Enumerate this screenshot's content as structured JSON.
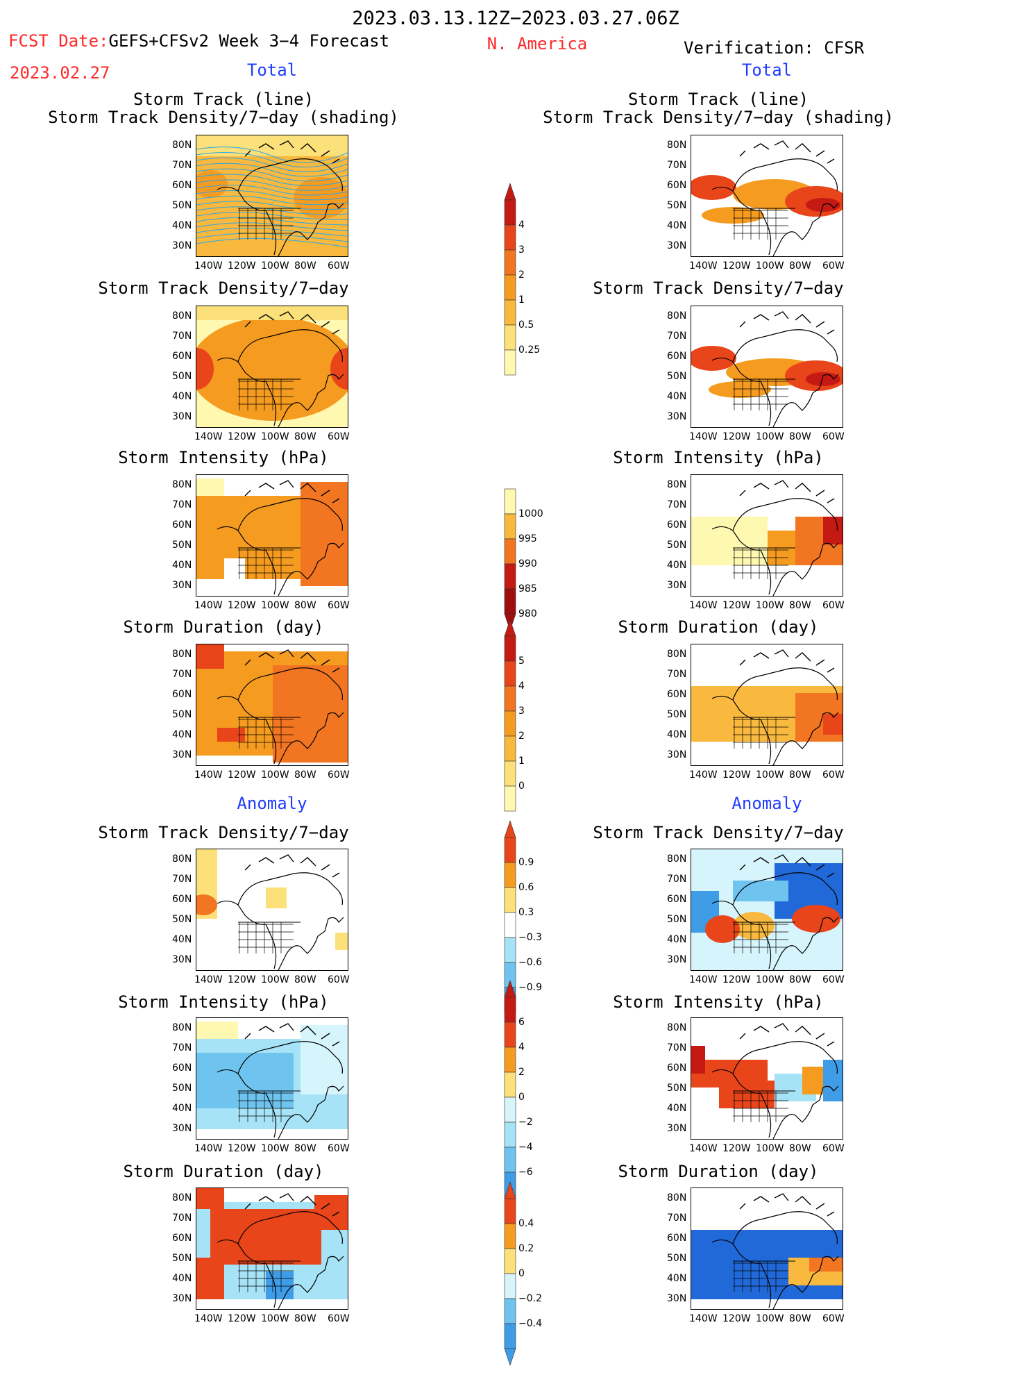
{
  "header": {
    "period": "2023.03.13.12Z−2023.03.27.06Z",
    "fcst_prefix": "FCST Date:",
    "fcst_model": "GEFS+CFSv2 Week 3−4 Forecast",
    "fcst_date": "2023.02.27",
    "region": "N. America",
    "verification": "Verification: CFSR",
    "total_left": "Total",
    "total_right": "Total",
    "anomaly_left": "Anomaly",
    "anomaly_right": "Anomaly"
  },
  "axes": {
    "lat_ticks": [
      "80N",
      "70N",
      "60N",
      "50N",
      "40N",
      "30N"
    ],
    "lon_ticks": [
      "140W",
      "120W",
      "100W",
      "80W",
      "60W"
    ]
  },
  "panels": {
    "p1": {
      "title1": "Storm Track (line)",
      "title2": "Storm Track Density/7−day (shading)"
    },
    "p2": {
      "title": "Storm Track Density/7−day"
    },
    "p3": {
      "title": "Storm Intensity (hPa)"
    },
    "p4": {
      "title": "Storm Duration (day)"
    },
    "p5": {
      "title": "Storm Track Density/7−day"
    },
    "p6": {
      "title": "Storm Intensity (hPa)"
    },
    "p7": {
      "title": "Storm Duration (day)"
    }
  },
  "colorbars": {
    "density": [
      "4",
      "3",
      "2",
      "1",
      "0.5",
      "0.25"
    ],
    "intensity": [
      "1000",
      "995",
      "990",
      "985",
      "980"
    ],
    "duration": [
      "5",
      "4",
      "3",
      "2",
      "1",
      "0"
    ],
    "density_anom": [
      "0.9",
      "0.6",
      "0.3",
      "−0.3",
      "−0.6",
      "−0.9"
    ],
    "intensity_anom": [
      "6",
      "4",
      "2",
      "0",
      "−2",
      "−4",
      "−6"
    ],
    "duration_anom": [
      "0.4",
      "0.2",
      "0",
      "−0.2",
      "−0.4"
    ]
  },
  "colors": {
    "warm": [
      "#fff8b0",
      "#fce07a",
      "#f9b83e",
      "#f59b1f",
      "#f27522",
      "#e8451b",
      "#c51a14",
      "#a00d0d"
    ],
    "cool": [
      "#d6f4fb",
      "#a6e3f6",
      "#6fc4ef",
      "#3f9ce6",
      "#2169d8"
    ],
    "title_red": "#ff2a2a",
    "title_blue": "#1f3cff",
    "track_line": "#2aa7e8"
  }
}
